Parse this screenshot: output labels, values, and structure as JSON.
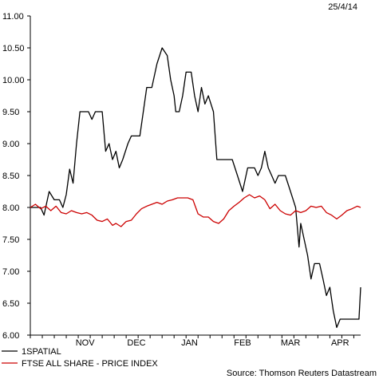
{
  "chart_data": {
    "type": "line",
    "date_stamp": "25/4/14",
    "source": "Source: Thomson Reuters Datastream",
    "ylim": [
      6.0,
      11.0
    ],
    "yticks": [
      "11.00",
      "10.50",
      "10.00",
      "9.50",
      "9.00",
      "8.50",
      "8.00",
      "7.50",
      "7.00",
      "6.50",
      "6.00"
    ],
    "ytick_values": [
      11.0,
      10.5,
      10.0,
      9.5,
      9.0,
      8.5,
      8.0,
      7.5,
      7.0,
      6.5,
      6.0
    ],
    "x_start": "2013-10-14",
    "x_end": "2014-04-25",
    "month_labels": [
      {
        "label": "NOV",
        "date": "2013-11-15"
      },
      {
        "label": "DEC",
        "date": "2013-12-15"
      },
      {
        "label": "JAN",
        "date": "2014-01-15"
      },
      {
        "label": "FEB",
        "date": "2014-02-15"
      },
      {
        "label": "MAR",
        "date": "2014-03-15"
      },
      {
        "label": "APR",
        "date": "2014-04-13"
      }
    ],
    "series": [
      {
        "name": "1SPATIAL",
        "color": "#000000",
        "points": [
          [
            "2013-10-14",
            8.0
          ],
          [
            "2013-10-20",
            8.0
          ],
          [
            "2013-10-22",
            7.88
          ],
          [
            "2013-10-25",
            8.25
          ],
          [
            "2013-10-28",
            8.12
          ],
          [
            "2013-10-31",
            8.12
          ],
          [
            "2013-11-02",
            8.0
          ],
          [
            "2013-11-04",
            8.2
          ],
          [
            "2013-11-06",
            8.6
          ],
          [
            "2013-11-08",
            8.38
          ],
          [
            "2013-11-10",
            9.0
          ],
          [
            "2013-11-12",
            9.5
          ],
          [
            "2013-11-17",
            9.5
          ],
          [
            "2013-11-19",
            9.38
          ],
          [
            "2013-11-21",
            9.5
          ],
          [
            "2013-11-25",
            9.5
          ],
          [
            "2013-11-27",
            8.88
          ],
          [
            "2013-11-29",
            9.0
          ],
          [
            "2013-12-01",
            8.75
          ],
          [
            "2013-12-03",
            8.88
          ],
          [
            "2013-12-05",
            8.62
          ],
          [
            "2013-12-07",
            8.75
          ],
          [
            "2013-12-10",
            9.0
          ],
          [
            "2013-12-12",
            9.12
          ],
          [
            "2013-12-17",
            9.12
          ],
          [
            "2013-12-19",
            9.5
          ],
          [
            "2013-12-21",
            9.88
          ],
          [
            "2013-12-24",
            9.88
          ],
          [
            "2013-12-27",
            10.25
          ],
          [
            "2013-12-30",
            10.5
          ],
          [
            "2014-01-02",
            10.38
          ],
          [
            "2014-01-04",
            10.0
          ],
          [
            "2014-01-06",
            9.75
          ],
          [
            "2014-01-07",
            9.5
          ],
          [
            "2014-01-09",
            9.5
          ],
          [
            "2014-01-11",
            9.75
          ],
          [
            "2014-01-13",
            10.12
          ],
          [
            "2014-01-16",
            10.12
          ],
          [
            "2014-01-18",
            9.75
          ],
          [
            "2014-01-20",
            9.5
          ],
          [
            "2014-01-22",
            9.88
          ],
          [
            "2014-01-24",
            9.62
          ],
          [
            "2014-01-26",
            9.75
          ],
          [
            "2014-01-29",
            9.5
          ],
          [
            "2014-01-31",
            8.75
          ],
          [
            "2014-02-09",
            8.75
          ],
          [
            "2014-02-12",
            8.5
          ],
          [
            "2014-02-15",
            8.25
          ],
          [
            "2014-02-18",
            8.62
          ],
          [
            "2014-02-22",
            8.62
          ],
          [
            "2014-02-24",
            8.5
          ],
          [
            "2014-02-26",
            8.62
          ],
          [
            "2014-02-28",
            8.88
          ],
          [
            "2014-03-02",
            8.62
          ],
          [
            "2014-03-04",
            8.5
          ],
          [
            "2014-03-06",
            8.38
          ],
          [
            "2014-03-08",
            8.5
          ],
          [
            "2014-03-12",
            8.5
          ],
          [
            "2014-03-15",
            8.25
          ],
          [
            "2014-03-18",
            8.0
          ],
          [
            "2014-03-20",
            7.38
          ],
          [
            "2014-03-21",
            7.75
          ],
          [
            "2014-03-23",
            7.5
          ],
          [
            "2014-03-25",
            7.25
          ],
          [
            "2014-03-27",
            6.88
          ],
          [
            "2014-03-29",
            7.12
          ],
          [
            "2014-04-01",
            7.12
          ],
          [
            "2014-04-03",
            6.88
          ],
          [
            "2014-04-05",
            6.62
          ],
          [
            "2014-04-07",
            6.75
          ],
          [
            "2014-04-09",
            6.38
          ],
          [
            "2014-04-11",
            6.12
          ],
          [
            "2014-04-13",
            6.25
          ],
          [
            "2014-04-24",
            6.25
          ],
          [
            "2014-04-25",
            6.75
          ]
        ]
      },
      {
        "name": "FTSE ALL SHARE - PRICE INDEX",
        "color": "#cc0000",
        "points": [
          [
            "2013-10-14",
            8.0
          ],
          [
            "2013-10-17",
            8.05
          ],
          [
            "2013-10-20",
            7.98
          ],
          [
            "2013-10-23",
            8.02
          ],
          [
            "2013-10-26",
            7.95
          ],
          [
            "2013-10-29",
            8.02
          ],
          [
            "2013-11-01",
            7.92
          ],
          [
            "2013-11-04",
            7.9
          ],
          [
            "2013-11-07",
            7.95
          ],
          [
            "2013-11-10",
            7.92
          ],
          [
            "2013-11-13",
            7.9
          ],
          [
            "2013-11-16",
            7.92
          ],
          [
            "2013-11-19",
            7.88
          ],
          [
            "2013-11-22",
            7.8
          ],
          [
            "2013-11-25",
            7.78
          ],
          [
            "2013-11-28",
            7.82
          ],
          [
            "2013-12-01",
            7.72
          ],
          [
            "2013-12-03",
            7.75
          ],
          [
            "2013-12-06",
            7.7
          ],
          [
            "2013-12-09",
            7.78
          ],
          [
            "2013-12-12",
            7.8
          ],
          [
            "2013-12-15",
            7.9
          ],
          [
            "2013-12-18",
            7.98
          ],
          [
            "2013-12-21",
            8.02
          ],
          [
            "2013-12-24",
            8.05
          ],
          [
            "2013-12-27",
            8.08
          ],
          [
            "2013-12-30",
            8.05
          ],
          [
            "2014-01-02",
            8.1
          ],
          [
            "2014-01-05",
            8.12
          ],
          [
            "2014-01-08",
            8.15
          ],
          [
            "2014-01-11",
            8.15
          ],
          [
            "2014-01-14",
            8.15
          ],
          [
            "2014-01-17",
            8.12
          ],
          [
            "2014-01-20",
            7.9
          ],
          [
            "2014-01-23",
            7.85
          ],
          [
            "2014-01-26",
            7.85
          ],
          [
            "2014-01-29",
            7.78
          ],
          [
            "2014-02-01",
            7.75
          ],
          [
            "2014-02-04",
            7.82
          ],
          [
            "2014-02-07",
            7.95
          ],
          [
            "2014-02-10",
            8.02
          ],
          [
            "2014-02-13",
            8.08
          ],
          [
            "2014-02-16",
            8.15
          ],
          [
            "2014-02-19",
            8.2
          ],
          [
            "2014-02-22",
            8.15
          ],
          [
            "2014-02-25",
            8.18
          ],
          [
            "2014-02-28",
            8.12
          ],
          [
            "2014-03-03",
            7.98
          ],
          [
            "2014-03-06",
            8.05
          ],
          [
            "2014-03-09",
            7.95
          ],
          [
            "2014-03-12",
            7.9
          ],
          [
            "2014-03-15",
            7.88
          ],
          [
            "2014-03-18",
            7.95
          ],
          [
            "2014-03-21",
            7.92
          ],
          [
            "2014-03-24",
            7.95
          ],
          [
            "2014-03-27",
            8.02
          ],
          [
            "2014-03-30",
            8.0
          ],
          [
            "2014-04-02",
            8.02
          ],
          [
            "2014-04-05",
            7.92
          ],
          [
            "2014-04-08",
            7.88
          ],
          [
            "2014-04-11",
            7.82
          ],
          [
            "2014-04-14",
            7.88
          ],
          [
            "2014-04-17",
            7.95
          ],
          [
            "2014-04-20",
            7.98
          ],
          [
            "2014-04-23",
            8.02
          ],
          [
            "2014-04-25",
            8.0
          ]
        ]
      }
    ],
    "legend_position": "bottom-left",
    "grid": false
  }
}
